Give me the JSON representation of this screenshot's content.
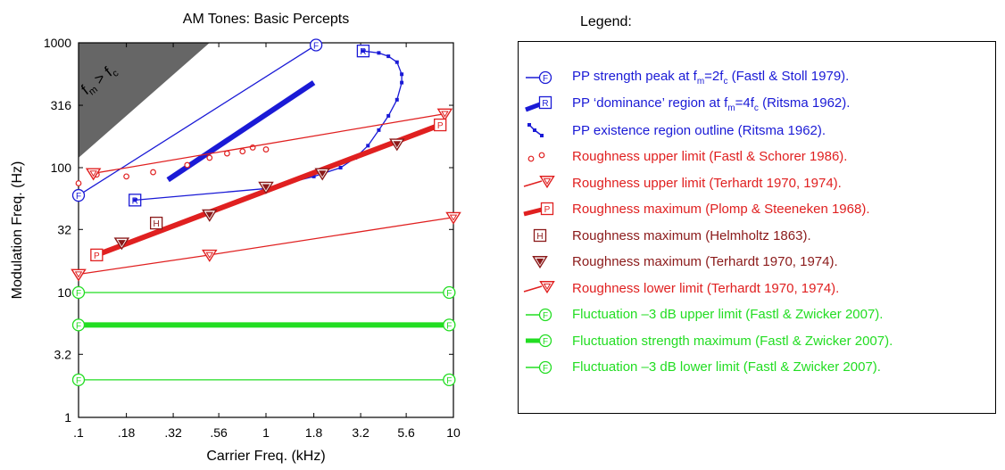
{
  "chart_data": {
    "type": "scatter",
    "title": "AM Tones: Basic Percepts",
    "xlabel": "Carrier Freq. (kHz)",
    "ylabel": "Modulation Freq. (Hz)",
    "xscale": "log",
    "yscale": "log",
    "xlim": [
      0.1,
      10
    ],
    "ylim": [
      1,
      1000
    ],
    "xticks": [
      {
        "value": 0.1,
        "label": ".1"
      },
      {
        "value": 0.18,
        "label": ".18"
      },
      {
        "value": 0.32,
        "label": ".32"
      },
      {
        "value": 0.56,
        "label": ".56"
      },
      {
        "value": 1,
        "label": "1"
      },
      {
        "value": 1.8,
        "label": "1.8"
      },
      {
        "value": 3.2,
        "label": "3.2"
      },
      {
        "value": 5.6,
        "label": "5.6"
      },
      {
        "value": 10,
        "label": "10"
      }
    ],
    "yticks": [
      {
        "value": 1,
        "label": "1"
      },
      {
        "value": 3.2,
        "label": "3.2"
      },
      {
        "value": 10,
        "label": "10"
      },
      {
        "value": 32,
        "label": "32"
      },
      {
        "value": 100,
        "label": "100"
      },
      {
        "value": 316,
        "label": "316"
      },
      {
        "value": 1000,
        "label": "1000"
      }
    ],
    "grid": false,
    "legend_placement": "right",
    "annotation": {
      "text": "f",
      "sub1": "m",
      "op": " > f",
      "sub2": "c"
    },
    "shaded_region": {
      "note_text": "",
      "color": "#666666",
      "vertices": [
        [
          0.1,
          1000
        ],
        [
          0.1,
          120
        ],
        [
          0.5,
          1000
        ]
      ]
    },
    "series": [
      {
        "id": "pp-peak",
        "color": "#1a1ad6",
        "style": "thin",
        "marker": "F",
        "x": [
          0.1,
          1.85
        ],
        "y": [
          60,
          960
        ]
      },
      {
        "id": "pp-dominance",
        "color": "#1a1ad6",
        "style": "thick",
        "x": [
          0.3,
          1.8
        ],
        "y": [
          80,
          480
        ]
      },
      {
        "id": "pp-dominance-marker",
        "color": "#1a1ad6",
        "style": "marker",
        "marker": "R",
        "x": [
          0.2,
          3.3
        ],
        "y": [
          55,
          860
        ]
      },
      {
        "id": "pp-existence",
        "color": "#1a1ad6",
        "style": "dotted-line",
        "x": [
          0.2,
          1.0,
          1.8,
          2.5,
          3.0,
          3.5,
          4.0,
          4.5,
          5.0,
          5.3,
          5.3,
          5.0,
          4.5,
          4.0,
          3.3
        ],
        "y": [
          55,
          68,
          85,
          100,
          120,
          150,
          200,
          260,
          350,
          480,
          560,
          700,
          780,
          830,
          860
        ]
      },
      {
        "id": "roughness-upper-fastl",
        "color": "#e02020",
        "style": "open-circles",
        "x": [
          0.1,
          0.125,
          0.18,
          0.25,
          0.38,
          0.5,
          0.62,
          0.75,
          0.85,
          1.0
        ],
        "y": [
          75,
          88,
          85,
          92,
          105,
          120,
          130,
          135,
          145,
          140
        ]
      },
      {
        "id": "roughness-upper-terhardt",
        "color": "#e02020",
        "style": "thin",
        "marker": "tri-down",
        "x": [
          0.12,
          9.0
        ],
        "y": [
          90,
          270
        ]
      },
      {
        "id": "roughness-max-plomp",
        "color": "#e02020",
        "style": "thick",
        "marker": "P",
        "x": [
          0.125,
          8.5
        ],
        "y": [
          20,
          220
        ]
      },
      {
        "id": "roughness-max-helmholtz",
        "color": "#8b1a1a",
        "style": "marker",
        "marker": "H",
        "x": [
          0.26
        ],
        "y": [
          36
        ]
      },
      {
        "id": "roughness-max-terhardt",
        "color": "#8b1a1a",
        "style": "markers-only",
        "marker": "tri-down-dark",
        "x": [
          0.17,
          0.5,
          1.0,
          2.0,
          5.0
        ],
        "y": [
          25,
          42,
          70,
          90,
          155
        ]
      },
      {
        "id": "roughness-lower-terhardt",
        "color": "#e02020",
        "style": "thin",
        "marker": "tri-down",
        "x": [
          0.1,
          0.5,
          10
        ],
        "y": [
          14,
          20,
          40
        ]
      },
      {
        "id": "fluct-upper",
        "color": "#22dd22",
        "style": "thin",
        "marker": "F",
        "x": [
          0.1,
          9.5
        ],
        "y": [
          10,
          10
        ]
      },
      {
        "id": "fluct-max",
        "color": "#22dd22",
        "style": "thick",
        "marker": "F",
        "x": [
          0.1,
          9.5
        ],
        "y": [
          5.5,
          5.5
        ]
      },
      {
        "id": "fluct-lower",
        "color": "#22dd22",
        "style": "thin",
        "marker": "F",
        "x": [
          0.1,
          9.5
        ],
        "y": [
          2,
          2
        ]
      }
    ]
  },
  "legend": {
    "title": "Legend:",
    "items": [
      {
        "pre": "PP strength peak at f",
        "sub1": "m",
        "mid": "=2f",
        "sub2": "c",
        "post": " (Fastl & Stoll 1979).",
        "color": "#1a1ad6",
        "symbol": "line-F"
      },
      {
        "pre": "PP ‘dominance’ region at f",
        "sub1": "m",
        "mid": "=4f",
        "sub2": "c",
        "post": " (Ritsma 1962).",
        "color": "#1a1ad6",
        "symbol": "thick-R"
      },
      {
        "pre": "PP existence region outline (Ritsma 1962).",
        "color": "#1a1ad6",
        "symbol": "dotted"
      },
      {
        "pre": "Roughness upper limit (Fastl & Schorer 1986).",
        "color": "#e02020",
        "symbol": "circles"
      },
      {
        "pre": "Roughness upper limit (Terhardt 1970, 1974).",
        "color": "#e02020",
        "symbol": "line-tri"
      },
      {
        "pre": "Roughness maximum (Plomp & Steeneken 1968).",
        "color": "#e02020",
        "symbol": "thick-P"
      },
      {
        "pre": "Roughness maximum (Helmholtz 1863).",
        "color": "#8b1a1a",
        "symbol": "H"
      },
      {
        "pre": "Roughness maximum (Terhardt 1970, 1974).",
        "color": "#8b1a1a",
        "symbol": "tri-dark"
      },
      {
        "pre": "Roughness lower limit (Terhardt 1970, 1974).",
        "color": "#e02020",
        "symbol": "line-tri"
      },
      {
        "pre": "Fluctuation –3 dB upper limit (Fastl & Zwicker 2007).",
        "color": "#22dd22",
        "symbol": "line-F"
      },
      {
        "pre": "Fluctuation strength maximum (Fastl & Zwicker 2007).",
        "color": "#22dd22",
        "symbol": "thick-F"
      },
      {
        "pre": "Fluctuation –3 dB lower limit (Fastl & Zwicker 2007).",
        "color": "#22dd22",
        "symbol": "line-F"
      }
    ]
  }
}
